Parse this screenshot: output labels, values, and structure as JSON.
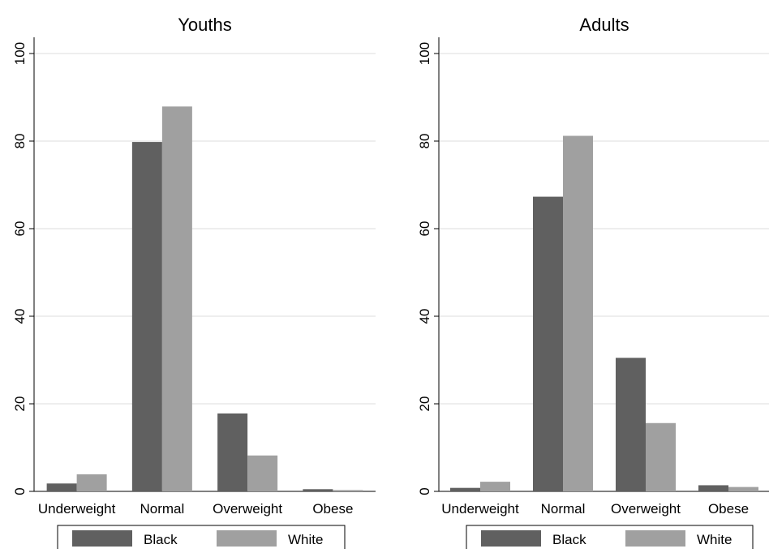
{
  "chart_data": [
    {
      "type": "bar",
      "title": "Youths",
      "categories": [
        "Underweight",
        "Normal",
        "Overweight",
        "Obese"
      ],
      "series": [
        {
          "name": "Black",
          "color": "#606060",
          "values": [
            1.8,
            79.8,
            17.8,
            0.5
          ]
        },
        {
          "name": "White",
          "color": "#a0a0a0",
          "values": [
            3.9,
            87.9,
            8.2,
            0.3
          ]
        }
      ],
      "ylim": [
        0,
        100
      ],
      "yticks": [
        "0",
        "20",
        "40",
        "60",
        "80",
        "100"
      ],
      "grid": true,
      "legend_position": "bottom"
    },
    {
      "type": "bar",
      "title": "Adults",
      "categories": [
        "Underweight",
        "Normal",
        "Overweight",
        "Obese"
      ],
      "series": [
        {
          "name": "Black",
          "color": "#606060",
          "values": [
            0.8,
            67.3,
            30.5,
            1.4
          ]
        },
        {
          "name": "White",
          "color": "#a0a0a0",
          "values": [
            2.2,
            81.2,
            15.6,
            1.0
          ]
        }
      ],
      "ylim": [
        0,
        100
      ],
      "yticks": [
        "0",
        "20",
        "40",
        "60",
        "80",
        "100"
      ],
      "grid": true,
      "legend_position": "bottom"
    }
  ]
}
